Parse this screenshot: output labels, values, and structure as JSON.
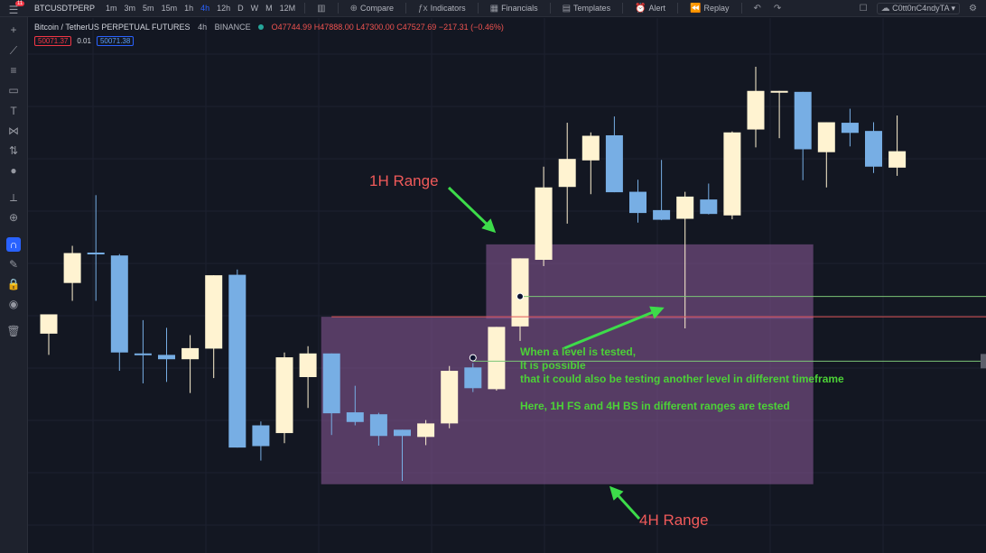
{
  "toolbar": {
    "symbol": "BTCUSDTPERP",
    "timeframes": [
      "1m",
      "3m",
      "5m",
      "15m",
      "1h",
      "4h",
      "12h",
      "D",
      "W",
      "M",
      "12M"
    ],
    "active_timeframe": "4h",
    "tools": [
      {
        "icon": "compare-icon",
        "label": "Compare"
      },
      {
        "icon": "indicators-icon",
        "label": "Indicators"
      },
      {
        "icon": "financials-icon",
        "label": "Financials"
      },
      {
        "icon": "templates-icon",
        "label": "Templates"
      },
      {
        "icon": "alert-icon",
        "label": "Alert"
      },
      {
        "icon": "replay-icon",
        "label": "Replay"
      }
    ],
    "username": "C0tt0nC4ndyTA",
    "notification_count": "11"
  },
  "legend": {
    "title": "Bitcoin / TetherUS PERPETUAL FUTURES",
    "interval": "4h",
    "exchange": "BINANCE",
    "ohlc": "O47744.99 H47888.00 L47300.00 C47527.69 −217.31 (−0.46%)",
    "bid": "50071.37",
    "spread": "0.01",
    "ask": "50071.38"
  },
  "colors": {
    "bull": "#fff3d1",
    "bear": "#77aee4",
    "zone": "#8e5b9b",
    "annotation": "#4cd137",
    "arrow": "#3ddc4a",
    "range_label": "#f05a5a"
  },
  "chart_data": {
    "type": "candlestick",
    "scale": "y values are relative price levels (0 = bottom of chart area, 100 = top); the axis prints no values",
    "candles": [
      {
        "o": 44.7,
        "h": 48.7,
        "l": 40.3,
        "c": 48.7
      },
      {
        "o": 55.2,
        "h": 62.9,
        "l": 51.5,
        "c": 61.4
      },
      {
        "o": 61.5,
        "h": 73.4,
        "l": 51.5,
        "c": 61.2
      },
      {
        "o": 60.9,
        "h": 61.2,
        "l": 37.0,
        "c": 40.8
      },
      {
        "o": 40.6,
        "h": 47.5,
        "l": 34.4,
        "c": 40.5
      },
      {
        "o": 40.3,
        "h": 45.9,
        "l": 34.7,
        "c": 39.4
      },
      {
        "o": 39.4,
        "h": 44.4,
        "l": 32.4,
        "c": 41.7
      },
      {
        "o": 41.6,
        "h": 56.8,
        "l": 35.5,
        "c": 56.8
      },
      {
        "o": 56.9,
        "h": 58.0,
        "l": 21.1,
        "c": 21.1
      },
      {
        "o": 25.7,
        "h": 26.5,
        "l": 18.4,
        "c": 21.4
      },
      {
        "o": 24.1,
        "h": 40.8,
        "l": 22.0,
        "c": 39.8
      },
      {
        "o": 35.7,
        "h": 42.1,
        "l": 29.3,
        "c": 40.6
      },
      {
        "o": 40.6,
        "h": 40.6,
        "l": 23.7,
        "c": 28.2
      },
      {
        "o": 28.4,
        "h": 33.9,
        "l": 25.7,
        "c": 26.4
      },
      {
        "o": 28.0,
        "h": 28.3,
        "l": 21.5,
        "c": 23.5
      },
      {
        "o": 24.8,
        "h": 24.8,
        "l": 14.2,
        "c": 23.5
      },
      {
        "o": 23.3,
        "h": 26.8,
        "l": 21.6,
        "c": 26.1
      },
      {
        "o": 26.1,
        "h": 38.0,
        "l": 25.1,
        "c": 37.0
      },
      {
        "o": 37.7,
        "h": 38.6,
        "l": 32.6,
        "c": 33.4
      },
      {
        "o": 33.2,
        "h": 46.1,
        "l": 32.9,
        "c": 46.1
      },
      {
        "o": 46.2,
        "h": 60.3,
        "l": 43.2,
        "c": 60.3
      },
      {
        "o": 60.0,
        "h": 79.3,
        "l": 58.7,
        "c": 75.0
      },
      {
        "o": 75.1,
        "h": 88.4,
        "l": 67.5,
        "c": 80.9
      },
      {
        "o": 80.6,
        "h": 86.4,
        "l": 73.6,
        "c": 85.7
      },
      {
        "o": 85.8,
        "h": 89.7,
        "l": 74.0,
        "c": 74.0
      },
      {
        "o": 74.1,
        "h": 76.6,
        "l": 67.7,
        "c": 69.7
      },
      {
        "o": 70.3,
        "h": 80.7,
        "l": 68.2,
        "c": 68.3
      },
      {
        "o": 68.5,
        "h": 74.1,
        "l": 45.8,
        "c": 73.1
      },
      {
        "o": 72.5,
        "h": 75.8,
        "l": 69.4,
        "c": 69.5
      },
      {
        "o": 69.2,
        "h": 86.6,
        "l": 68.4,
        "c": 86.4
      },
      {
        "o": 87.0,
        "h": 100.0,
        "l": 83.3,
        "c": 95.0
      },
      {
        "o": 95.0,
        "h": 95.0,
        "l": 85.2,
        "c": 95.0
      },
      {
        "o": 94.8,
        "h": 94.8,
        "l": 76.5,
        "c": 82.9
      },
      {
        "o": 82.3,
        "h": 88.5,
        "l": 75.0,
        "c": 88.5
      },
      {
        "o": 88.4,
        "h": 91.3,
        "l": 83.5,
        "c": 86.3
      },
      {
        "o": 86.7,
        "h": 88.5,
        "l": 78.0,
        "c": 79.3
      },
      {
        "o": 79.1,
        "h": 89.9,
        "l": 77.4,
        "c": 82.5
      }
    ],
    "zones": [
      {
        "label": "1H Range",
        "start_index": 19,
        "end_index": 32,
        "top": 63.2,
        "bottom": 47.8
      },
      {
        "label": "4H Range",
        "start_index": 12,
        "end_index": 32,
        "top": 48.2,
        "bottom": 13.5
      }
    ],
    "levels": [
      {
        "y": 52.4,
        "color": "#7cc576",
        "from_index": 20
      },
      {
        "y": 48.2,
        "color": "#e05555",
        "from_index": 12
      },
      {
        "y": 39.0,
        "color": "#7cc576",
        "from_index": 18
      }
    ],
    "markers": [
      {
        "index": 20,
        "y": 52.4
      },
      {
        "index": 18,
        "y": 39.7
      }
    ]
  },
  "annotations": {
    "range_1h": "1H Range",
    "range_4h": "4H Range",
    "note_lines": [
      "When a level is tested,",
      "It is possible",
      "that it could also be testing another level in different timeframe",
      "",
      "Here, 1H FS and 4H BS in different ranges are tested"
    ]
  }
}
